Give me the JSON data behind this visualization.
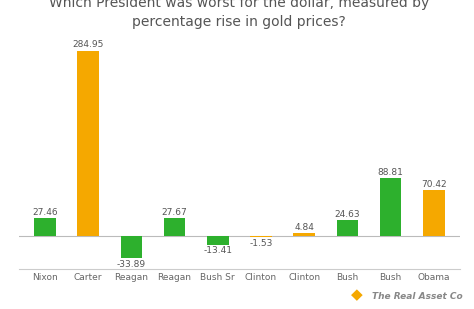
{
  "title": "Which President was worst for the dollar, measured by\npercentage rise in gold prices?",
  "categories": [
    "Nixon",
    "Carter",
    "Reagan",
    "Reagan",
    "Bush Sr",
    "Clinton",
    "Clinton",
    "Bush",
    "Bush",
    "Obama"
  ],
  "values": [
    27.46,
    284.95,
    -33.89,
    27.67,
    -13.41,
    -1.53,
    4.84,
    24.63,
    88.81,
    70.42
  ],
  "colors": [
    "#2db02d",
    "#f5a800",
    "#2db02d",
    "#2db02d",
    "#2db02d",
    "#f5a800",
    "#f5a800",
    "#2db02d",
    "#2db02d",
    "#f5a800"
  ],
  "background_color": "#ffffff",
  "title_fontsize": 10,
  "label_fontsize": 6.5,
  "tick_fontsize": 6.5,
  "logo_text": "The Real Asset Co",
  "logo_color": "#f5a800"
}
